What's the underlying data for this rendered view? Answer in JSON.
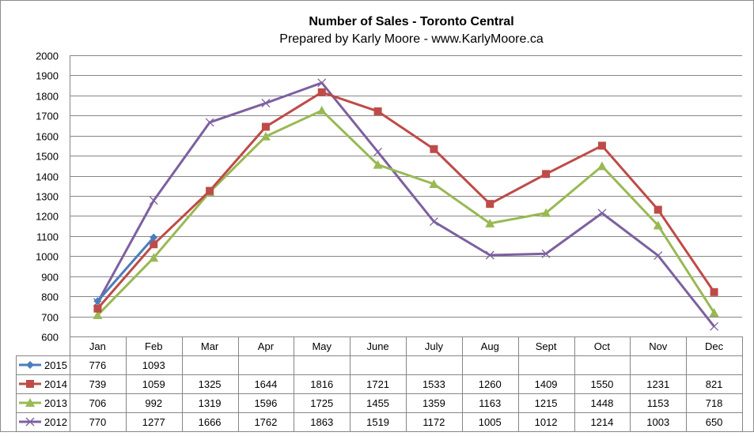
{
  "chart_data": {
    "type": "line",
    "title": "Number of Sales - Toronto Central",
    "subtitle": "Prepared by Karly Moore - www.KarlyMoore.ca",
    "categories": [
      "Jan",
      "Feb",
      "Mar",
      "Apr",
      "May",
      "June",
      "July",
      "Aug",
      "Sept",
      "Oct",
      "Nov",
      "Dec"
    ],
    "ylim": [
      600,
      2000
    ],
    "yticks": [
      600,
      700,
      800,
      900,
      1000,
      1100,
      1200,
      1300,
      1400,
      1500,
      1600,
      1700,
      1800,
      1900,
      2000
    ],
    "grid": true,
    "legend_placement": "data-table-left",
    "series": [
      {
        "name": "2015",
        "color": "#4a7ebb",
        "marker": "diamond",
        "values": [
          776,
          1093,
          null,
          null,
          null,
          null,
          null,
          null,
          null,
          null,
          null,
          null
        ]
      },
      {
        "name": "2014",
        "color": "#be4b48",
        "marker": "square",
        "values": [
          739,
          1059,
          1325,
          1644,
          1816,
          1721,
          1533,
          1260,
          1409,
          1550,
          1231,
          821
        ]
      },
      {
        "name": "2013",
        "color": "#98b954",
        "marker": "triangle",
        "values": [
          706,
          992,
          1319,
          1596,
          1725,
          1455,
          1359,
          1163,
          1215,
          1448,
          1153,
          718
        ]
      },
      {
        "name": "2012",
        "color": "#7d60a0",
        "marker": "x",
        "values": [
          770,
          1277,
          1666,
          1762,
          1863,
          1519,
          1172,
          1005,
          1012,
          1214,
          1003,
          650
        ]
      }
    ]
  }
}
